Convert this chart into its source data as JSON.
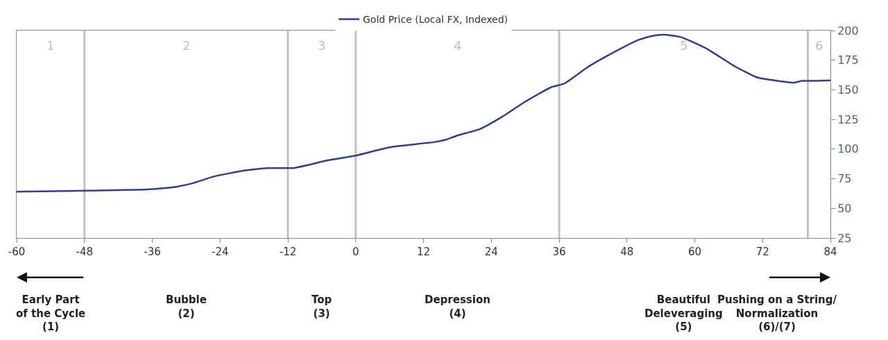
{
  "chart_data": {
    "type": "line",
    "x": [
      -60,
      -47,
      -37,
      -32,
      -29,
      -25,
      -19.5,
      -15.5,
      -11,
      -8,
      -5,
      0,
      6,
      14,
      16,
      18,
      22,
      26,
      30,
      34.5,
      37,
      41,
      46,
      50,
      52.5,
      54.5,
      57.5,
      62,
      67,
      71,
      74,
      77.5,
      79,
      81,
      84
    ],
    "series": [
      {
        "name": "Gold Price (Local FX, Indexed)",
        "color": "#2e3f91",
        "values": [
          64,
          65,
          66,
          68,
          71,
          77,
          82,
          84,
          84,
          87,
          90.5,
          94.5,
          101.5,
          106,
          108,
          111.5,
          117,
          127.5,
          140,
          152,
          155.5,
          169,
          182.5,
          192,
          195.5,
          196.5,
          194.5,
          185,
          170,
          160.5,
          158,
          156,
          157.5,
          157.5,
          158
        ]
      }
    ],
    "xlim": [
      -60,
      84
    ],
    "xticks": [
      -60,
      -48,
      -36,
      -24,
      -12,
      0,
      12,
      24,
      36,
      48,
      60,
      72,
      84
    ],
    "ylim": [
      25,
      200
    ],
    "yticks": [
      25,
      50,
      75,
      100,
      125,
      150,
      175,
      200
    ],
    "grid": false,
    "legend": "top",
    "line_style": "solid",
    "marker": "none",
    "ref_lines": [
      {
        "axis": "x",
        "value": -48,
        "color": "#c0c0c0"
      },
      {
        "axis": "x",
        "value": -12,
        "color": "#c0c0c0"
      },
      {
        "axis": "x",
        "value": 0,
        "color": "#c0c0c0"
      },
      {
        "axis": "x",
        "value": 36,
        "color": "#c0c0c0"
      },
      {
        "axis": "x",
        "value": 80,
        "color": "#c0c0c0"
      }
    ],
    "annotations": [
      "1",
      "2",
      "3",
      "4",
      "5",
      "6",
      "Early Part\nof the Cycle\n(1)",
      "Bubble\n(2)",
      "Top\n(3)",
      "Depression\n(4)",
      "Beautiful\nDeleveraging\n(5)",
      "Pushing on a String/\nNormalization\n(6)/(7)"
    ]
  }
}
